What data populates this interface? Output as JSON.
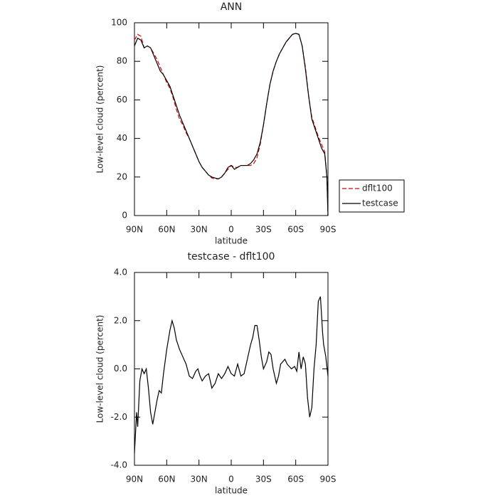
{
  "chart_data": [
    {
      "type": "line",
      "title": "ANN",
      "xlabel": "latitude",
      "ylabel": "Low-level cloud (percent)",
      "xlim": [
        90,
        -90
      ],
      "xticks": [
        {
          "value": 90,
          "label": "90N"
        },
        {
          "value": 60,
          "label": "60N"
        },
        {
          "value": 30,
          "label": "30N"
        },
        {
          "value": 0,
          "label": "0"
        },
        {
          "value": -30,
          "label": "30S"
        },
        {
          "value": -60,
          "label": "60S"
        },
        {
          "value": -90,
          "label": "90S"
        }
      ],
      "ylim": [
        0,
        100
      ],
      "yticks": [
        0,
        20,
        40,
        60,
        80,
        100
      ],
      "legend": "right",
      "series": [
        {
          "name": "dflt100",
          "color": "#e00000",
          "dash": "dashed",
          "x": [
            90,
            87,
            84,
            81,
            78,
            75,
            72,
            69,
            66,
            63,
            60,
            57,
            54,
            51,
            48,
            45,
            42,
            39,
            36,
            33,
            30,
            27,
            24,
            21,
            18,
            15,
            12,
            9,
            6,
            3,
            0,
            -3,
            -6,
            -9,
            -12,
            -15,
            -18,
            -21,
            -24,
            -27,
            -30,
            -33,
            -36,
            -39,
            -42,
            -45,
            -48,
            -51,
            -54,
            -57,
            -60,
            -63,
            -66,
            -69,
            -72,
            -75,
            -78,
            -81,
            -84,
            -87,
            -89,
            -90
          ],
          "values": [
            91,
            94,
            93,
            87,
            88,
            87,
            84,
            81,
            77,
            73,
            69,
            66,
            61,
            55,
            50,
            47,
            43,
            40,
            36,
            32,
            28,
            25,
            23,
            21,
            19.5,
            19,
            19,
            20,
            22,
            24,
            26,
            25,
            25,
            26,
            26,
            26,
            26,
            27,
            30,
            37,
            47,
            58,
            68,
            75,
            80,
            84,
            87,
            90,
            92,
            94,
            94.5,
            94,
            88,
            77,
            62,
            51,
            46,
            41,
            37,
            33,
            20,
            0
          ]
        },
        {
          "name": "testcase",
          "color": "#000000",
          "dash": "solid",
          "x": [
            90,
            87,
            84,
            81,
            78,
            75,
            72,
            69,
            66,
            63,
            60,
            57,
            54,
            51,
            48,
            45,
            42,
            39,
            36,
            33,
            30,
            27,
            24,
            21,
            18,
            15,
            12,
            9,
            6,
            3,
            0,
            -3,
            -6,
            -9,
            -12,
            -15,
            -18,
            -21,
            -24,
            -27,
            -30,
            -33,
            -36,
            -39,
            -42,
            -45,
            -48,
            -51,
            -54,
            -57,
            -60,
            -63,
            -66,
            -69,
            -72,
            -75,
            -78,
            -81,
            -84,
            -87,
            -89,
            -90
          ],
          "values": [
            88,
            92,
            91,
            87,
            88,
            87,
            83,
            79,
            75,
            73,
            70,
            67,
            62,
            57,
            52,
            48,
            44,
            40,
            36,
            32,
            28,
            25,
            23,
            21,
            20,
            19.5,
            19,
            20,
            22,
            25,
            26,
            24,
            25,
            26,
            26,
            26,
            27,
            29,
            32,
            38,
            47,
            58,
            68,
            75,
            80,
            84,
            87,
            90,
            92,
            94,
            94.5,
            94,
            88,
            76,
            62,
            50,
            45,
            40,
            35,
            32,
            20,
            0
          ]
        }
      ]
    },
    {
      "type": "line",
      "title": "testcase - dflt100",
      "xlabel": "latitude",
      "ylabel": "Low-level cloud (percent)",
      "xlim": [
        90,
        -90
      ],
      "xticks": [
        {
          "value": 90,
          "label": "90N"
        },
        {
          "value": 60,
          "label": "60N"
        },
        {
          "value": 30,
          "label": "30N"
        },
        {
          "value": 0,
          "label": "0"
        },
        {
          "value": -30,
          "label": "30S"
        },
        {
          "value": -60,
          "label": "60S"
        },
        {
          "value": -90,
          "label": "90S"
        }
      ],
      "ylim": [
        -4,
        4
      ],
      "yticks": [
        {
          "value": -4,
          "label": "-4.0"
        },
        {
          "value": -2,
          "label": "-2.0"
        },
        {
          "value": 0,
          "label": "0.0"
        },
        {
          "value": 2,
          "label": "2.0"
        },
        {
          "value": 4,
          "label": "4.0"
        }
      ],
      "series": [
        {
          "color": "#000000",
          "dash": "solid",
          "x": [
            90,
            88,
            87,
            85,
            83,
            81,
            79,
            77,
            75,
            73,
            71,
            69,
            67,
            65,
            63,
            60,
            57,
            55,
            53,
            51,
            48,
            45,
            42,
            39,
            36,
            33,
            31,
            29,
            27,
            24,
            21,
            18,
            15,
            12,
            9,
            6,
            3,
            0,
            -3,
            -6,
            -9,
            -12,
            -15,
            -18,
            -20,
            -22,
            -24,
            -26,
            -28,
            -30,
            -33,
            -35,
            -37,
            -39,
            -42,
            -44,
            -46,
            -50,
            -52,
            -56,
            -59,
            -61,
            -63,
            -65,
            -67,
            -69,
            -71,
            -73,
            -75,
            -77,
            -79,
            -81,
            -83,
            -85,
            -86,
            -88,
            -90
          ],
          "values": [
            -3.5,
            -1.8,
            -2.4,
            -0.5,
            0,
            -0.2,
            0,
            -0.8,
            -1.8,
            -2.3,
            -1.8,
            -1.3,
            -0.9,
            -1.0,
            -0.2,
            0.8,
            1.6,
            2.0,
            1.7,
            1.2,
            0.8,
            0.5,
            0.2,
            -0.3,
            -0.4,
            -0.1,
            0.0,
            -0.3,
            -0.5,
            -0.3,
            -0.2,
            -0.8,
            -0.6,
            -0.2,
            -0.4,
            -0.2,
            0.1,
            -0.2,
            -0.3,
            0.2,
            -0.3,
            -0.2,
            0.4,
            1.0,
            1.3,
            1.8,
            1.8,
            1.2,
            0.5,
            0.0,
            0.3,
            0.7,
            0.6,
            0.0,
            -0.6,
            -0.3,
            0.2,
            0.4,
            0.2,
            0.0,
            0.1,
            -0.1,
            0.7,
            0.0,
            0.5,
            0.2,
            -1.2,
            -2.0,
            -1.6,
            0.0,
            1.0,
            2.8,
            3.0,
            1.5,
            1.0,
            0.5,
            -0.3
          ]
        }
      ]
    }
  ]
}
